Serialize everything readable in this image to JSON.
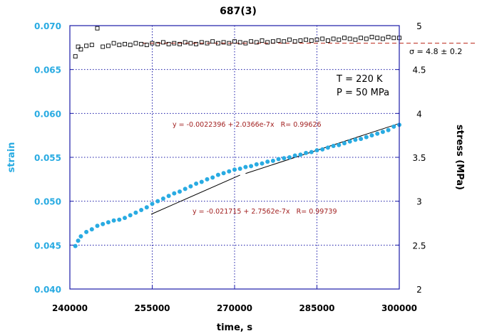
{
  "colors": {
    "strain": "#29abe2",
    "stress": "#000000",
    "grid": "#1a1aa8",
    "fit": "#a11f1f",
    "sigma_line": "#c0392b",
    "frame": "#1a1aa8"
  },
  "chart_data": {
    "type": "scatter",
    "title": "687(3)",
    "xlabel": "time, s",
    "ylabel_left": "strain",
    "ylabel_right": "stress (MPa)",
    "xlim": [
      240000,
      300000
    ],
    "ylim_left": [
      0.04,
      0.07
    ],
    "ylim_right": [
      2,
      5
    ],
    "x_ticks": [
      "240000",
      "255000",
      "270000",
      "285000",
      "300000"
    ],
    "left_ticks": [
      "0.070",
      "0.065",
      "0.060",
      "0.055",
      "0.050",
      "0.045",
      "0.040"
    ],
    "right_ticks": [
      "5",
      "4.5",
      "4",
      "3.5",
      "3",
      "2.5",
      "2"
    ],
    "grid": true,
    "conditions": [
      "T = 220 K",
      "P = 50 MPa"
    ],
    "sigma_label": "σ = 4.8 ± 0.2",
    "sigma_value": 4.8,
    "fits": [
      {
        "label": "y = -0.0022396 + 2.0366e-7x   R= 0.99626",
        "intercept": -0.0022396,
        "slope": 2.0366e-07,
        "x_range": [
          272000,
          299800
        ]
      },
      {
        "label": "y = -0.021715 + 2.7562e-7x   R= 0.99739",
        "intercept": -0.021715,
        "slope": 2.7562e-07,
        "x_range": [
          254800,
          271000
        ]
      }
    ],
    "series": [
      {
        "name": "strain",
        "axis": "left",
        "marker": "filled-circle",
        "x": [
          241000,
          241500,
          242000,
          243000,
          244000,
          245000,
          246000,
          247000,
          248000,
          249000,
          250000,
          251000,
          252000,
          253000,
          254000,
          255000,
          256000,
          257000,
          258000,
          259000,
          260000,
          261000,
          262000,
          263000,
          264000,
          265000,
          266000,
          267000,
          268000,
          269000,
          270000,
          271000,
          272000,
          273000,
          274000,
          275000,
          276000,
          277000,
          278000,
          279000,
          280000,
          281000,
          282000,
          283000,
          284000,
          285000,
          286000,
          287000,
          288000,
          289000,
          290000,
          291000,
          292000,
          293000,
          294000,
          295000,
          296000,
          297000,
          298000,
          299000,
          300000
        ],
        "values": [
          0.0449,
          0.0455,
          0.046,
          0.0465,
          0.0468,
          0.0472,
          0.0474,
          0.0476,
          0.0478,
          0.0479,
          0.0481,
          0.0484,
          0.0487,
          0.049,
          0.0493,
          0.0497,
          0.05,
          0.0503,
          0.0506,
          0.0509,
          0.0511,
          0.0514,
          0.0517,
          0.052,
          0.0522,
          0.0525,
          0.0527,
          0.053,
          0.0532,
          0.0534,
          0.0536,
          0.0537,
          0.0539,
          0.054,
          0.0542,
          0.0543,
          0.0545,
          0.0546,
          0.0548,
          0.0549,
          0.055,
          0.0552,
          0.0553,
          0.0555,
          0.0556,
          0.0558,
          0.0559,
          0.0561,
          0.0563,
          0.0564,
          0.0566,
          0.0568,
          0.057,
          0.0571,
          0.0573,
          0.0575,
          0.0577,
          0.0579,
          0.0581,
          0.0585,
          0.0587
        ]
      },
      {
        "name": "stress",
        "axis": "right",
        "marker": "open-square",
        "x": [
          241000,
          241500,
          242000,
          243000,
          244000,
          245000,
          246000,
          247000,
          248000,
          249000,
          250000,
          251000,
          252000,
          253000,
          254000,
          255000,
          256000,
          257000,
          258000,
          259000,
          260000,
          261000,
          262000,
          263000,
          264000,
          265000,
          266000,
          267000,
          268000,
          269000,
          270000,
          271000,
          272000,
          273000,
          274000,
          275000,
          276000,
          277000,
          278000,
          279000,
          280000,
          281000,
          282000,
          283000,
          284000,
          285000,
          286000,
          287000,
          288000,
          289000,
          290000,
          291000,
          292000,
          293000,
          294000,
          295000,
          296000,
          297000,
          298000,
          299000,
          300000
        ],
        "values": [
          4.65,
          4.76,
          4.73,
          4.77,
          4.78,
          4.97,
          4.76,
          4.77,
          4.8,
          4.78,
          4.79,
          4.78,
          4.8,
          4.79,
          4.78,
          4.8,
          4.79,
          4.81,
          4.79,
          4.8,
          4.79,
          4.81,
          4.8,
          4.79,
          4.81,
          4.8,
          4.82,
          4.8,
          4.81,
          4.8,
          4.82,
          4.81,
          4.8,
          4.82,
          4.81,
          4.83,
          4.81,
          4.82,
          4.83,
          4.82,
          4.84,
          4.82,
          4.83,
          4.84,
          4.83,
          4.84,
          4.85,
          4.83,
          4.85,
          4.84,
          4.86,
          4.85,
          4.84,
          4.86,
          4.85,
          4.87,
          4.86,
          4.85,
          4.87,
          4.86,
          4.86
        ]
      }
    ]
  }
}
